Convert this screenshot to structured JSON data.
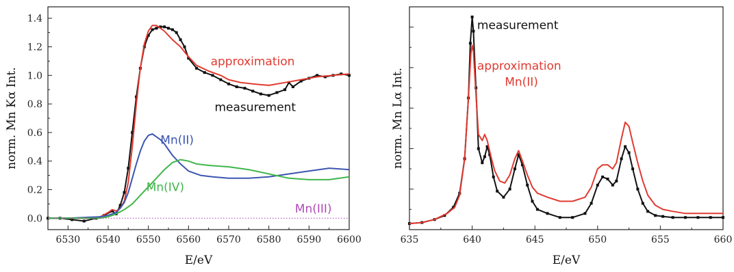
{
  "chart_data": [
    {
      "type": "line",
      "xlabel": "E/eV",
      "ylabel": "norm. Mn Kα Int.",
      "xlim": [
        6525,
        6600
      ],
      "ylim": [
        -0.08,
        1.48
      ],
      "xticks": [
        6530,
        6540,
        6550,
        6560,
        6570,
        6580,
        6590,
        6600
      ],
      "yticks": [
        0.0,
        0.2,
        0.4,
        0.6,
        0.8,
        1.0,
        1.2,
        1.4
      ],
      "ytick_labels": [
        "0.0",
        "0.2",
        "0.4",
        "0.6",
        "0.8",
        "1.0",
        "1.2",
        "1.4"
      ],
      "grid": false,
      "series": [
        {
          "name": "measurement",
          "color": "#111111",
          "markers": true,
          "x": [
            6525,
            6528,
            6531,
            6534,
            6537,
            6539,
            6541,
            6542,
            6543,
            6544,
            6545,
            6546,
            6547,
            6548,
            6549,
            6550,
            6551,
            6552,
            6553,
            6554,
            6555,
            6556,
            6557,
            6558,
            6559,
            6560,
            6562,
            6564,
            6566,
            6568,
            6570,
            6572,
            6574,
            6576,
            6578,
            6580,
            6582,
            6584,
            6585,
            6586,
            6588,
            6590,
            6592,
            6594,
            6596,
            6598,
            6600
          ],
          "y": [
            0.0,
            0.0,
            -0.01,
            -0.02,
            0.0,
            0.02,
            0.05,
            0.03,
            0.09,
            0.18,
            0.35,
            0.6,
            0.85,
            1.05,
            1.2,
            1.28,
            1.32,
            1.33,
            1.34,
            1.34,
            1.33,
            1.32,
            1.3,
            1.25,
            1.2,
            1.12,
            1.05,
            1.02,
            1.0,
            0.97,
            0.94,
            0.92,
            0.91,
            0.89,
            0.87,
            0.86,
            0.88,
            0.9,
            0.95,
            0.92,
            0.96,
            0.98,
            1.0,
            0.99,
            1.0,
            1.01,
            1.0
          ]
        },
        {
          "name": "approximation",
          "color": "#e03a30",
          "markers": false,
          "x": [
            6525,
            6530,
            6535,
            6538,
            6540,
            6541,
            6542,
            6543,
            6544,
            6545,
            6546,
            6547,
            6548,
            6549,
            6550,
            6551,
            6552,
            6553,
            6554,
            6555,
            6556,
            6558,
            6560,
            6562,
            6565,
            6568,
            6570,
            6573,
            6576,
            6580,
            6584,
            6588,
            6592,
            6596,
            6600
          ],
          "y": [
            0.0,
            0.0,
            0.0,
            0.01,
            0.04,
            0.06,
            0.05,
            0.07,
            0.12,
            0.25,
            0.5,
            0.8,
            1.05,
            1.22,
            1.31,
            1.35,
            1.35,
            1.33,
            1.31,
            1.28,
            1.25,
            1.2,
            1.13,
            1.07,
            1.03,
            1.0,
            0.97,
            0.95,
            0.94,
            0.93,
            0.95,
            0.97,
            0.99,
            1.0,
            1.01
          ]
        },
        {
          "name": "Mn(II)",
          "color": "#3b55b0",
          "markers": false,
          "x": [
            6525,
            6530,
            6538,
            6540,
            6542,
            6543,
            6544,
            6545,
            6546,
            6547,
            6548,
            6549,
            6550,
            6551,
            6552,
            6553,
            6554,
            6555,
            6556,
            6558,
            6560,
            6563,
            6566,
            6570,
            6575,
            6580,
            6585,
            6590,
            6595,
            6600
          ],
          "y": [
            0.0,
            0.0,
            0.01,
            0.02,
            0.04,
            0.07,
            0.11,
            0.18,
            0.28,
            0.38,
            0.47,
            0.54,
            0.58,
            0.59,
            0.57,
            0.55,
            0.52,
            0.48,
            0.44,
            0.38,
            0.33,
            0.3,
            0.29,
            0.28,
            0.28,
            0.29,
            0.31,
            0.33,
            0.35,
            0.34
          ]
        },
        {
          "name": "Mn(IV)",
          "color": "#3fb54a",
          "markers": false,
          "x": [
            6525,
            6530,
            6538,
            6540,
            6542,
            6544,
            6546,
            6548,
            6550,
            6552,
            6554,
            6556,
            6558,
            6560,
            6562,
            6565,
            6570,
            6575,
            6580,
            6585,
            6590,
            6595,
            6600
          ],
          "y": [
            0.0,
            0.0,
            0.0,
            0.01,
            0.03,
            0.06,
            0.1,
            0.16,
            0.22,
            0.28,
            0.34,
            0.39,
            0.41,
            0.4,
            0.38,
            0.37,
            0.36,
            0.34,
            0.31,
            0.28,
            0.27,
            0.27,
            0.29
          ]
        },
        {
          "name": "Mn(III)",
          "color": "#b04ab6",
          "markers": false,
          "dotted": true,
          "x": [
            6525,
            6600
          ],
          "y": [
            0.0,
            0.0
          ]
        }
      ],
      "annotations": [
        {
          "text": "approximation",
          "color": "#e03a30",
          "x": 6565.5,
          "y": 1.07
        },
        {
          "text": "measurement",
          "color": "#111111",
          "x": 6566.5,
          "y": 0.75
        },
        {
          "text": "Mn(II)",
          "color": "#3b55b0",
          "x": 6553.0,
          "y": 0.52
        },
        {
          "text": "Mn(IV)",
          "color": "#3fb54a",
          "x": 6549.5,
          "y": 0.19
        },
        {
          "text": "Mn(III)",
          "color": "#b04ab6",
          "x": 6586.5,
          "y": 0.04
        }
      ]
    },
    {
      "type": "line",
      "xlabel": "E/eV",
      "ylabel": "norm. Mn Lα Int.",
      "xlim": [
        635,
        660
      ],
      "ylim": [
        0.0,
        1.1
      ],
      "xticks": [
        635,
        640,
        645,
        650,
        655,
        660
      ],
      "yticks": [
        0.2,
        0.4,
        0.6,
        0.8,
        1.0
      ],
      "grid": false,
      "series": [
        {
          "name": "measurement",
          "color": "#111111",
          "markers": true,
          "x": [
            635,
            636,
            637,
            637.8,
            638.5,
            639,
            639.4,
            639.7,
            639.85,
            640.0,
            640.1,
            640.3,
            640.5,
            640.8,
            641.0,
            641.2,
            641.4,
            641.7,
            642.0,
            642.5,
            643.0,
            643.4,
            643.7,
            644.0,
            644.4,
            644.8,
            645.2,
            646.0,
            647.0,
            648.0,
            649.0,
            649.5,
            650.0,
            650.4,
            650.8,
            651.2,
            651.5,
            651.9,
            652.2,
            652.5,
            652.8,
            653.2,
            653.6,
            654.0,
            654.6,
            655.2,
            656,
            657,
            658,
            659,
            660
          ],
          "y": [
            0.03,
            0.035,
            0.05,
            0.07,
            0.11,
            0.18,
            0.35,
            0.65,
            0.92,
            1.05,
            0.98,
            0.7,
            0.4,
            0.33,
            0.36,
            0.41,
            0.37,
            0.26,
            0.19,
            0.16,
            0.2,
            0.3,
            0.37,
            0.32,
            0.22,
            0.14,
            0.1,
            0.08,
            0.06,
            0.06,
            0.08,
            0.13,
            0.22,
            0.26,
            0.25,
            0.22,
            0.24,
            0.35,
            0.41,
            0.38,
            0.3,
            0.2,
            0.13,
            0.09,
            0.07,
            0.065,
            0.06,
            0.06,
            0.06,
            0.06,
            0.06
          ]
        },
        {
          "name": "approximation Mn(II)",
          "color": "#e03a30",
          "markers": false,
          "x": [
            635,
            636,
            637,
            638,
            638.6,
            639,
            639.4,
            639.7,
            639.9,
            640.0,
            640.1,
            640.3,
            640.5,
            640.8,
            641.0,
            641.2,
            641.5,
            641.8,
            642.2,
            642.6,
            643.0,
            643.4,
            643.7,
            644.0,
            644.4,
            644.8,
            645.2,
            646.0,
            647.0,
            648.0,
            649.0,
            649.5,
            650.0,
            650.4,
            650.8,
            651.2,
            651.5,
            651.9,
            652.2,
            652.5,
            652.8,
            653.2,
            653.6,
            654.0,
            654.6,
            655.2,
            656,
            657,
            658,
            659,
            660
          ],
          "y": [
            0.03,
            0.035,
            0.05,
            0.08,
            0.11,
            0.17,
            0.35,
            0.65,
            0.87,
            0.91,
            0.88,
            0.67,
            0.47,
            0.44,
            0.47,
            0.44,
            0.36,
            0.29,
            0.24,
            0.23,
            0.27,
            0.35,
            0.39,
            0.34,
            0.27,
            0.21,
            0.18,
            0.16,
            0.14,
            0.14,
            0.16,
            0.21,
            0.3,
            0.32,
            0.32,
            0.3,
            0.33,
            0.45,
            0.53,
            0.51,
            0.43,
            0.33,
            0.24,
            0.17,
            0.12,
            0.1,
            0.09,
            0.08,
            0.08,
            0.08,
            0.08
          ]
        }
      ],
      "annotations": [
        {
          "text": "measurement",
          "color": "#111111",
          "x": 640.4,
          "y": 0.99
        },
        {
          "text": "approximation",
          "color": "#e03a30",
          "x": 640.4,
          "y": 0.79
        },
        {
          "text": "Mn(II)",
          "color": "#e03a30",
          "x": 642.6,
          "y": 0.71
        }
      ]
    }
  ]
}
